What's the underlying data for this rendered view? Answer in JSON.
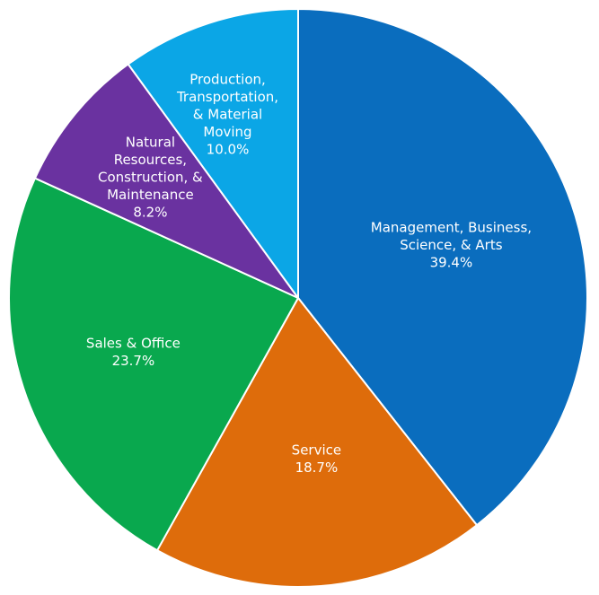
{
  "chart_data": {
    "type": "pie",
    "title": "",
    "start_angle_deg": -90,
    "direction": "clockwise",
    "slices": [
      {
        "label": [
          "Management, Business,",
          "Science, & Arts"
        ],
        "value": 39.4,
        "value_label": "39.4%",
        "color": "#0A6DBE"
      },
      {
        "label": [
          "Service"
        ],
        "value": 18.7,
        "value_label": "18.7%",
        "color": "#DE6C0B"
      },
      {
        "label": [
          "Sales & Office"
        ],
        "value": 23.7,
        "value_label": "23.7%",
        "color": "#09A84E"
      },
      {
        "label": [
          "Natural",
          "Resources,",
          "Construction, &",
          "Maintenance"
        ],
        "value": 8.2,
        "value_label": "8.2%",
        "color": "#6A32A0"
      },
      {
        "label": [
          "Production,",
          "Transportation,",
          "& Material",
          "Moving"
        ],
        "value": 10.0,
        "value_label": "10.0%",
        "color": "#0BA6E6"
      }
    ]
  }
}
